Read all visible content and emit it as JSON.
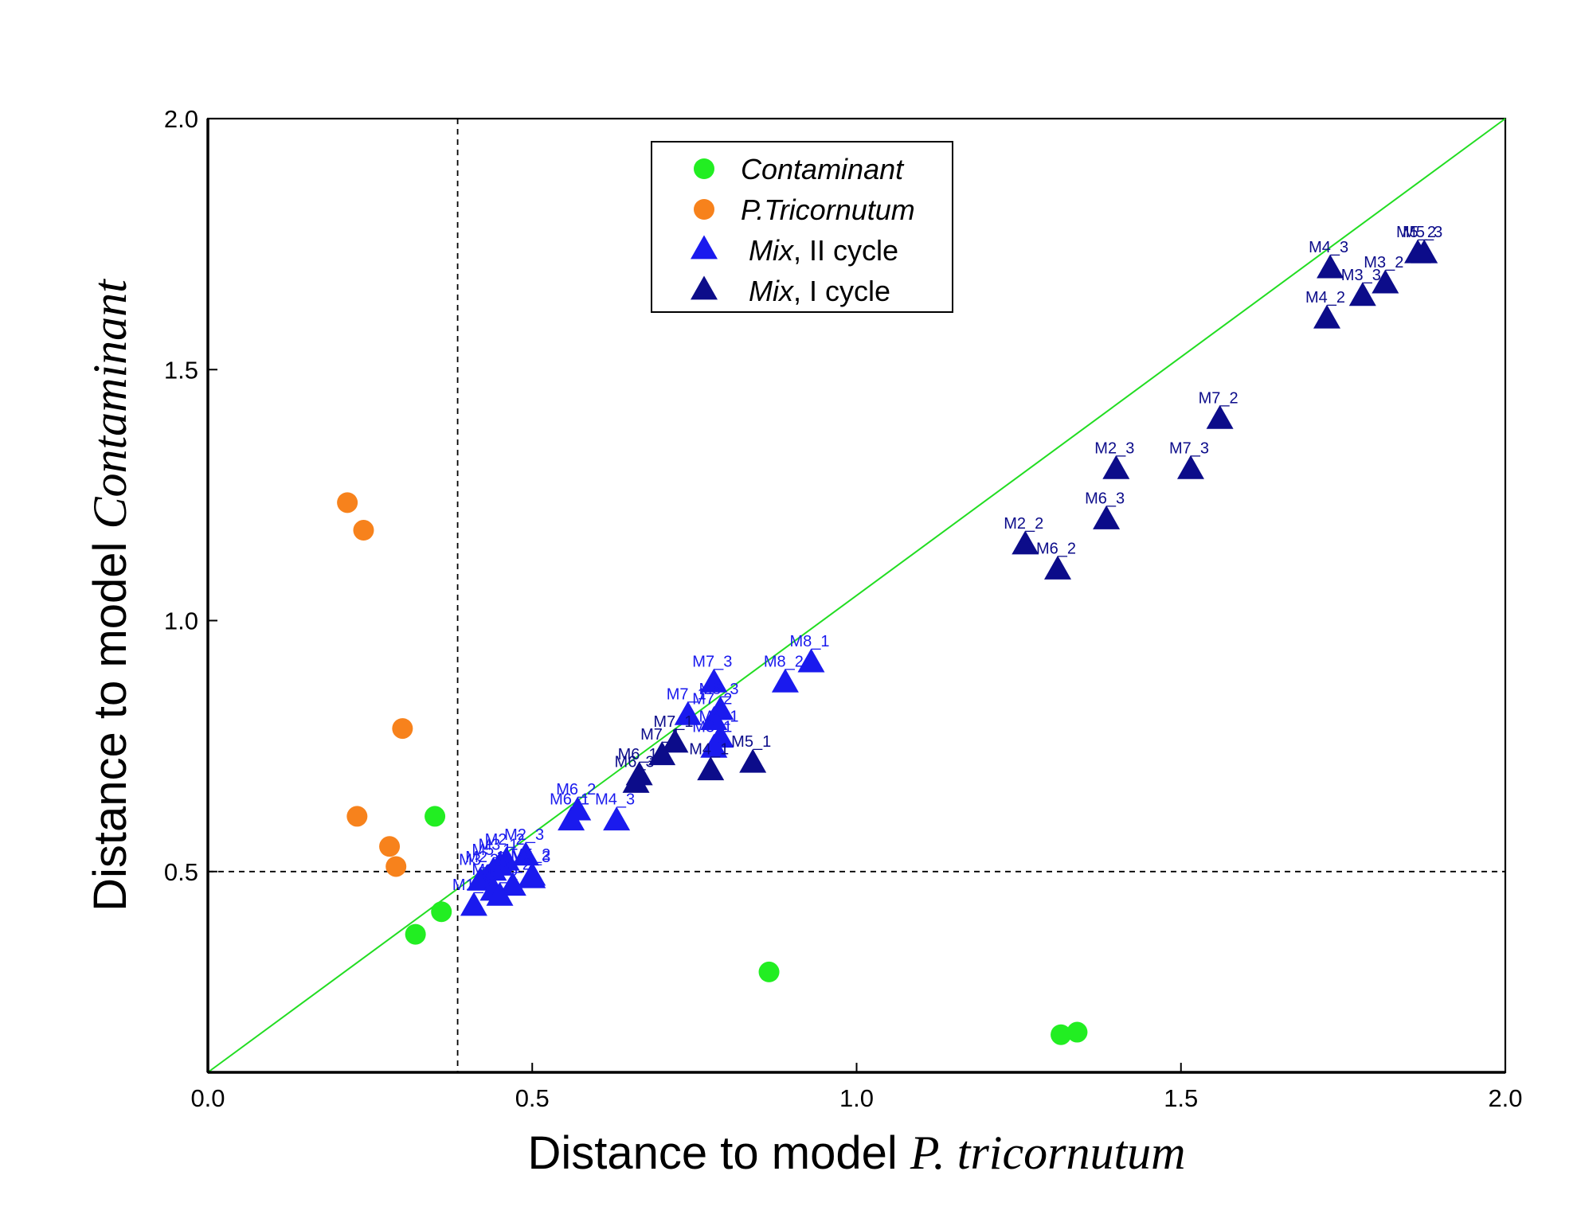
{
  "chart_data": {
    "type": "scatter",
    "xlabel_prefix": "Distance to model ",
    "xlabel_italic": "P. tricornutum",
    "ylabel_prefix": "Distance to model ",
    "ylabel_italic": "Contaminant",
    "xlim": [
      0.0,
      2.0
    ],
    "ylim": [
      0.1,
      2.0
    ],
    "xticks": [
      "0.0",
      "0.5",
      "1.0",
      "1.5",
      "2.0"
    ],
    "xtick_values": [
      0.0,
      0.5,
      1.0,
      1.5,
      2.0
    ],
    "yticks": [
      "0.5",
      "1.0",
      "1.5",
      "2.0"
    ],
    "ytick_values": [
      0.5,
      1.0,
      1.5,
      2.0
    ],
    "reference_lines": {
      "diagonal": {
        "from": [
          0.0,
          0.1
        ],
        "to": [
          2.0,
          2.0
        ],
        "color": "#22dd22"
      },
      "vertical_dashed_x": 0.385,
      "horizontal_dashed_y": 0.5
    },
    "legend": {
      "position": "top-center",
      "entries": [
        {
          "italic": "Contaminant",
          "rest": "",
          "marker": "circle",
          "color": "#22ee22"
        },
        {
          "italic": "P.Tricornutum",
          "rest": "",
          "marker": "circle",
          "color": "#f7821c"
        },
        {
          "italic": "Mix",
          "rest": ", II cycle",
          "marker": "triangle",
          "color": "#1a1aee"
        },
        {
          "italic": "Mix",
          "rest": ", I cycle",
          "marker": "triangle",
          "color": "#0c0c8a"
        }
      ]
    },
    "series": [
      {
        "name": "Contaminant",
        "marker": "circle",
        "color": "#22ee22",
        "points": [
          {
            "x": 0.32,
            "y": 0.375
          },
          {
            "x": 0.36,
            "y": 0.42
          },
          {
            "x": 0.35,
            "y": 0.61
          },
          {
            "x": 0.865,
            "y": 0.3
          },
          {
            "x": 1.315,
            "y": 0.175
          },
          {
            "x": 1.34,
            "y": 0.18
          }
        ]
      },
      {
        "name": "P.Tricornutum",
        "marker": "circle",
        "color": "#f7821c",
        "points": [
          {
            "x": 0.215,
            "y": 1.235
          },
          {
            "x": 0.24,
            "y": 1.18
          },
          {
            "x": 0.3,
            "y": 0.785
          },
          {
            "x": 0.23,
            "y": 0.61
          },
          {
            "x": 0.28,
            "y": 0.55
          },
          {
            "x": 0.29,
            "y": 0.51
          }
        ]
      },
      {
        "name": "Mix, II cycle",
        "marker": "triangle",
        "color": "#1a1aee",
        "points": [
          {
            "x": 0.93,
            "y": 0.915,
            "label": "M8_1"
          },
          {
            "x": 0.89,
            "y": 0.875,
            "label": "M8_2"
          },
          {
            "x": 0.78,
            "y": 0.875,
            "label": "M7_3"
          },
          {
            "x": 0.79,
            "y": 0.82,
            "label": "M8_3"
          },
          {
            "x": 0.78,
            "y": 0.8,
            "label": "M7_2"
          },
          {
            "x": 0.74,
            "y": 0.81,
            "label": "M7_1"
          },
          {
            "x": 0.79,
            "y": 0.765,
            "label": "M4_1"
          },
          {
            "x": 0.78,
            "y": 0.745,
            "label": "M3_1"
          },
          {
            "x": 0.57,
            "y": 0.62,
            "label": "M6_2"
          },
          {
            "x": 0.56,
            "y": 0.6,
            "label": "M6_1"
          },
          {
            "x": 0.63,
            "y": 0.6,
            "label": "M4_3"
          },
          {
            "x": 0.49,
            "y": 0.53,
            "label": "M2_3"
          },
          {
            "x": 0.46,
            "y": 0.52,
            "label": "M2_2"
          },
          {
            "x": 0.45,
            "y": 0.51,
            "label": "M3_1"
          },
          {
            "x": 0.5,
            "y": 0.49,
            "label": "M5_2"
          },
          {
            "x": 0.44,
            "y": 0.5,
            "label": "M5_1"
          },
          {
            "x": 0.43,
            "y": 0.485,
            "label": "M2_1"
          },
          {
            "x": 0.42,
            "y": 0.48,
            "label": "M3_2"
          },
          {
            "x": 0.47,
            "y": 0.47,
            "label": "M4_2"
          },
          {
            "x": 0.44,
            "y": 0.46,
            "label": "M1_1"
          },
          {
            "x": 0.45,
            "y": 0.45,
            "label": "M1_2"
          },
          {
            "x": 0.41,
            "y": 0.43,
            "label": "M1_3"
          },
          {
            "x": 0.5,
            "y": 0.485,
            "label": "M5_3"
          }
        ]
      },
      {
        "name": "Mix, I cycle",
        "marker": "triangle",
        "color": "#0c0c8a",
        "points": [
          {
            "x": 1.865,
            "y": 1.73,
            "label": "M5_2"
          },
          {
            "x": 1.875,
            "y": 1.73,
            "label": "M5_3"
          },
          {
            "x": 1.73,
            "y": 1.7,
            "label": "M4_3"
          },
          {
            "x": 1.815,
            "y": 1.67,
            "label": "M3_2"
          },
          {
            "x": 1.78,
            "y": 1.645,
            "label": "M3_3"
          },
          {
            "x": 1.725,
            "y": 1.6,
            "label": "M4_2"
          },
          {
            "x": 1.56,
            "y": 1.4,
            "label": "M7_2"
          },
          {
            "x": 1.4,
            "y": 1.3,
            "label": "M2_3"
          },
          {
            "x": 1.515,
            "y": 1.3,
            "label": "M7_3"
          },
          {
            "x": 1.385,
            "y": 1.2,
            "label": "M6_3"
          },
          {
            "x": 1.26,
            "y": 1.15,
            "label": "M2_2"
          },
          {
            "x": 1.31,
            "y": 1.1,
            "label": "M6_2"
          },
          {
            "x": 0.84,
            "y": 0.715,
            "label": "M5_1"
          },
          {
            "x": 0.775,
            "y": 0.7,
            "label": "M4_1"
          },
          {
            "x": 0.7,
            "y": 0.73,
            "label": "M7_1"
          },
          {
            "x": 0.72,
            "y": 0.755,
            "label": "M7_1"
          },
          {
            "x": 0.665,
            "y": 0.69,
            "label": "M6_1"
          },
          {
            "x": 0.66,
            "y": 0.675,
            "label": "M6_3"
          }
        ]
      }
    ]
  }
}
